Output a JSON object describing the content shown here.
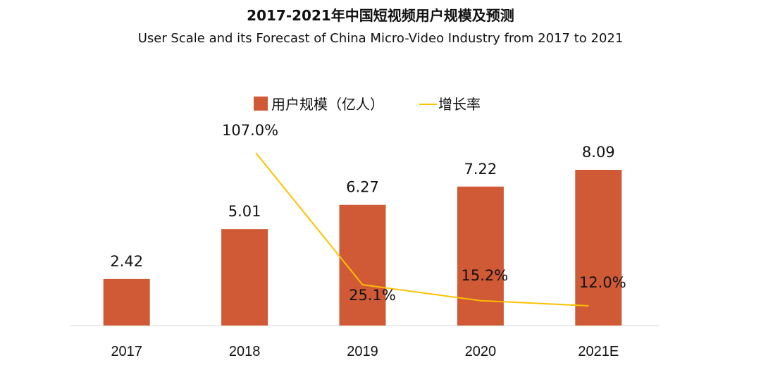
{
  "chart_data": {
    "type": "bar",
    "title": "2017-2021年中国短视频用户规模及预测",
    "subtitle": "User Scale and its Forecast of China Micro-Video Industry from 2017 to 2021",
    "categories": [
      "2017",
      "2018",
      "2019",
      "2020",
      "2021E"
    ],
    "series": [
      {
        "name": "用户规模（亿人）",
        "type": "bar",
        "color": "#D05A36",
        "values": [
          2.42,
          5.01,
          6.27,
          7.22,
          8.09
        ],
        "labels": [
          "2.42",
          "5.01",
          "6.27",
          "7.22",
          "8.09"
        ]
      },
      {
        "name": "增长率",
        "type": "line",
        "color": "#FFC000",
        "values": [
          null,
          107.0,
          25.1,
          15.2,
          12.0
        ],
        "labels": [
          "",
          "107.0%",
          "25.1%",
          "15.2%",
          "12.0%"
        ]
      }
    ],
    "xlabel": "",
    "ylabel": "",
    "ylim": [
      0,
      9.5
    ],
    "y2lim": [
      0,
      140
    ],
    "grid": false,
    "legend": "top-center"
  }
}
